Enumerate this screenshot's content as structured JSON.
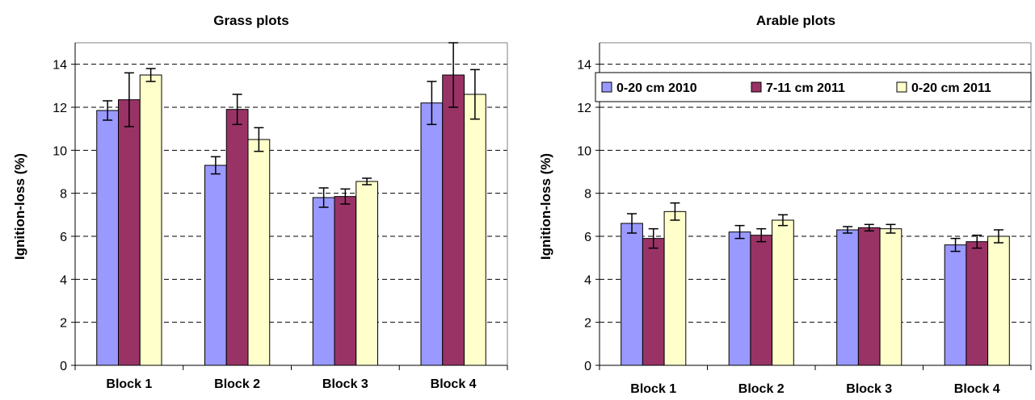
{
  "chart_data": [
    {
      "type": "bar",
      "title": "Grass plots",
      "ylabel": "Ignition-loss (%)",
      "xlabel": "",
      "categories": [
        "Block 1",
        "Block 2",
        "Block 3",
        "Block 4"
      ],
      "ylim": [
        0,
        15
      ],
      "yticks": [
        0,
        2,
        4,
        6,
        8,
        10,
        12,
        14
      ],
      "grid": true,
      "legend": null,
      "series": [
        {
          "name": "0-20 cm 2010",
          "color": "#9999ff",
          "values": [
            11.85,
            9.3,
            7.8,
            12.2
          ],
          "errors": [
            0.45,
            0.4,
            0.45,
            1.0
          ]
        },
        {
          "name": "7-11 cm 2011",
          "color": "#993366",
          "values": [
            12.35,
            11.9,
            7.85,
            13.5
          ],
          "errors": [
            1.25,
            0.7,
            0.35,
            1.5
          ]
        },
        {
          "name": "0-20 cm 2011",
          "color": "#ffffcc",
          "values": [
            13.5,
            10.5,
            8.55,
            12.6
          ],
          "errors": [
            0.3,
            0.55,
            0.15,
            1.15
          ]
        }
      ]
    },
    {
      "type": "bar",
      "title": "Arable plots",
      "ylabel": "Ignition-loss (%)",
      "xlabel": "",
      "categories": [
        "Block 1",
        "Block 2",
        "Block 3",
        "Block 4"
      ],
      "ylim": [
        0,
        15
      ],
      "yticks": [
        0,
        2,
        4,
        6,
        8,
        10,
        12,
        14
      ],
      "grid": true,
      "legend": "top",
      "series": [
        {
          "name": "0-20 cm 2010",
          "color": "#9999ff",
          "values": [
            6.6,
            6.2,
            6.3,
            5.6
          ],
          "errors": [
            0.45,
            0.3,
            0.15,
            0.3
          ]
        },
        {
          "name": "7-11 cm 2011",
          "color": "#993366",
          "values": [
            5.9,
            6.05,
            6.4,
            5.75
          ],
          "errors": [
            0.45,
            0.3,
            0.15,
            0.3
          ]
        },
        {
          "name": "0-20 cm 2011",
          "color": "#ffffcc",
          "values": [
            7.15,
            6.75,
            6.35,
            6.0
          ],
          "errors": [
            0.4,
            0.25,
            0.2,
            0.3
          ]
        }
      ]
    }
  ]
}
